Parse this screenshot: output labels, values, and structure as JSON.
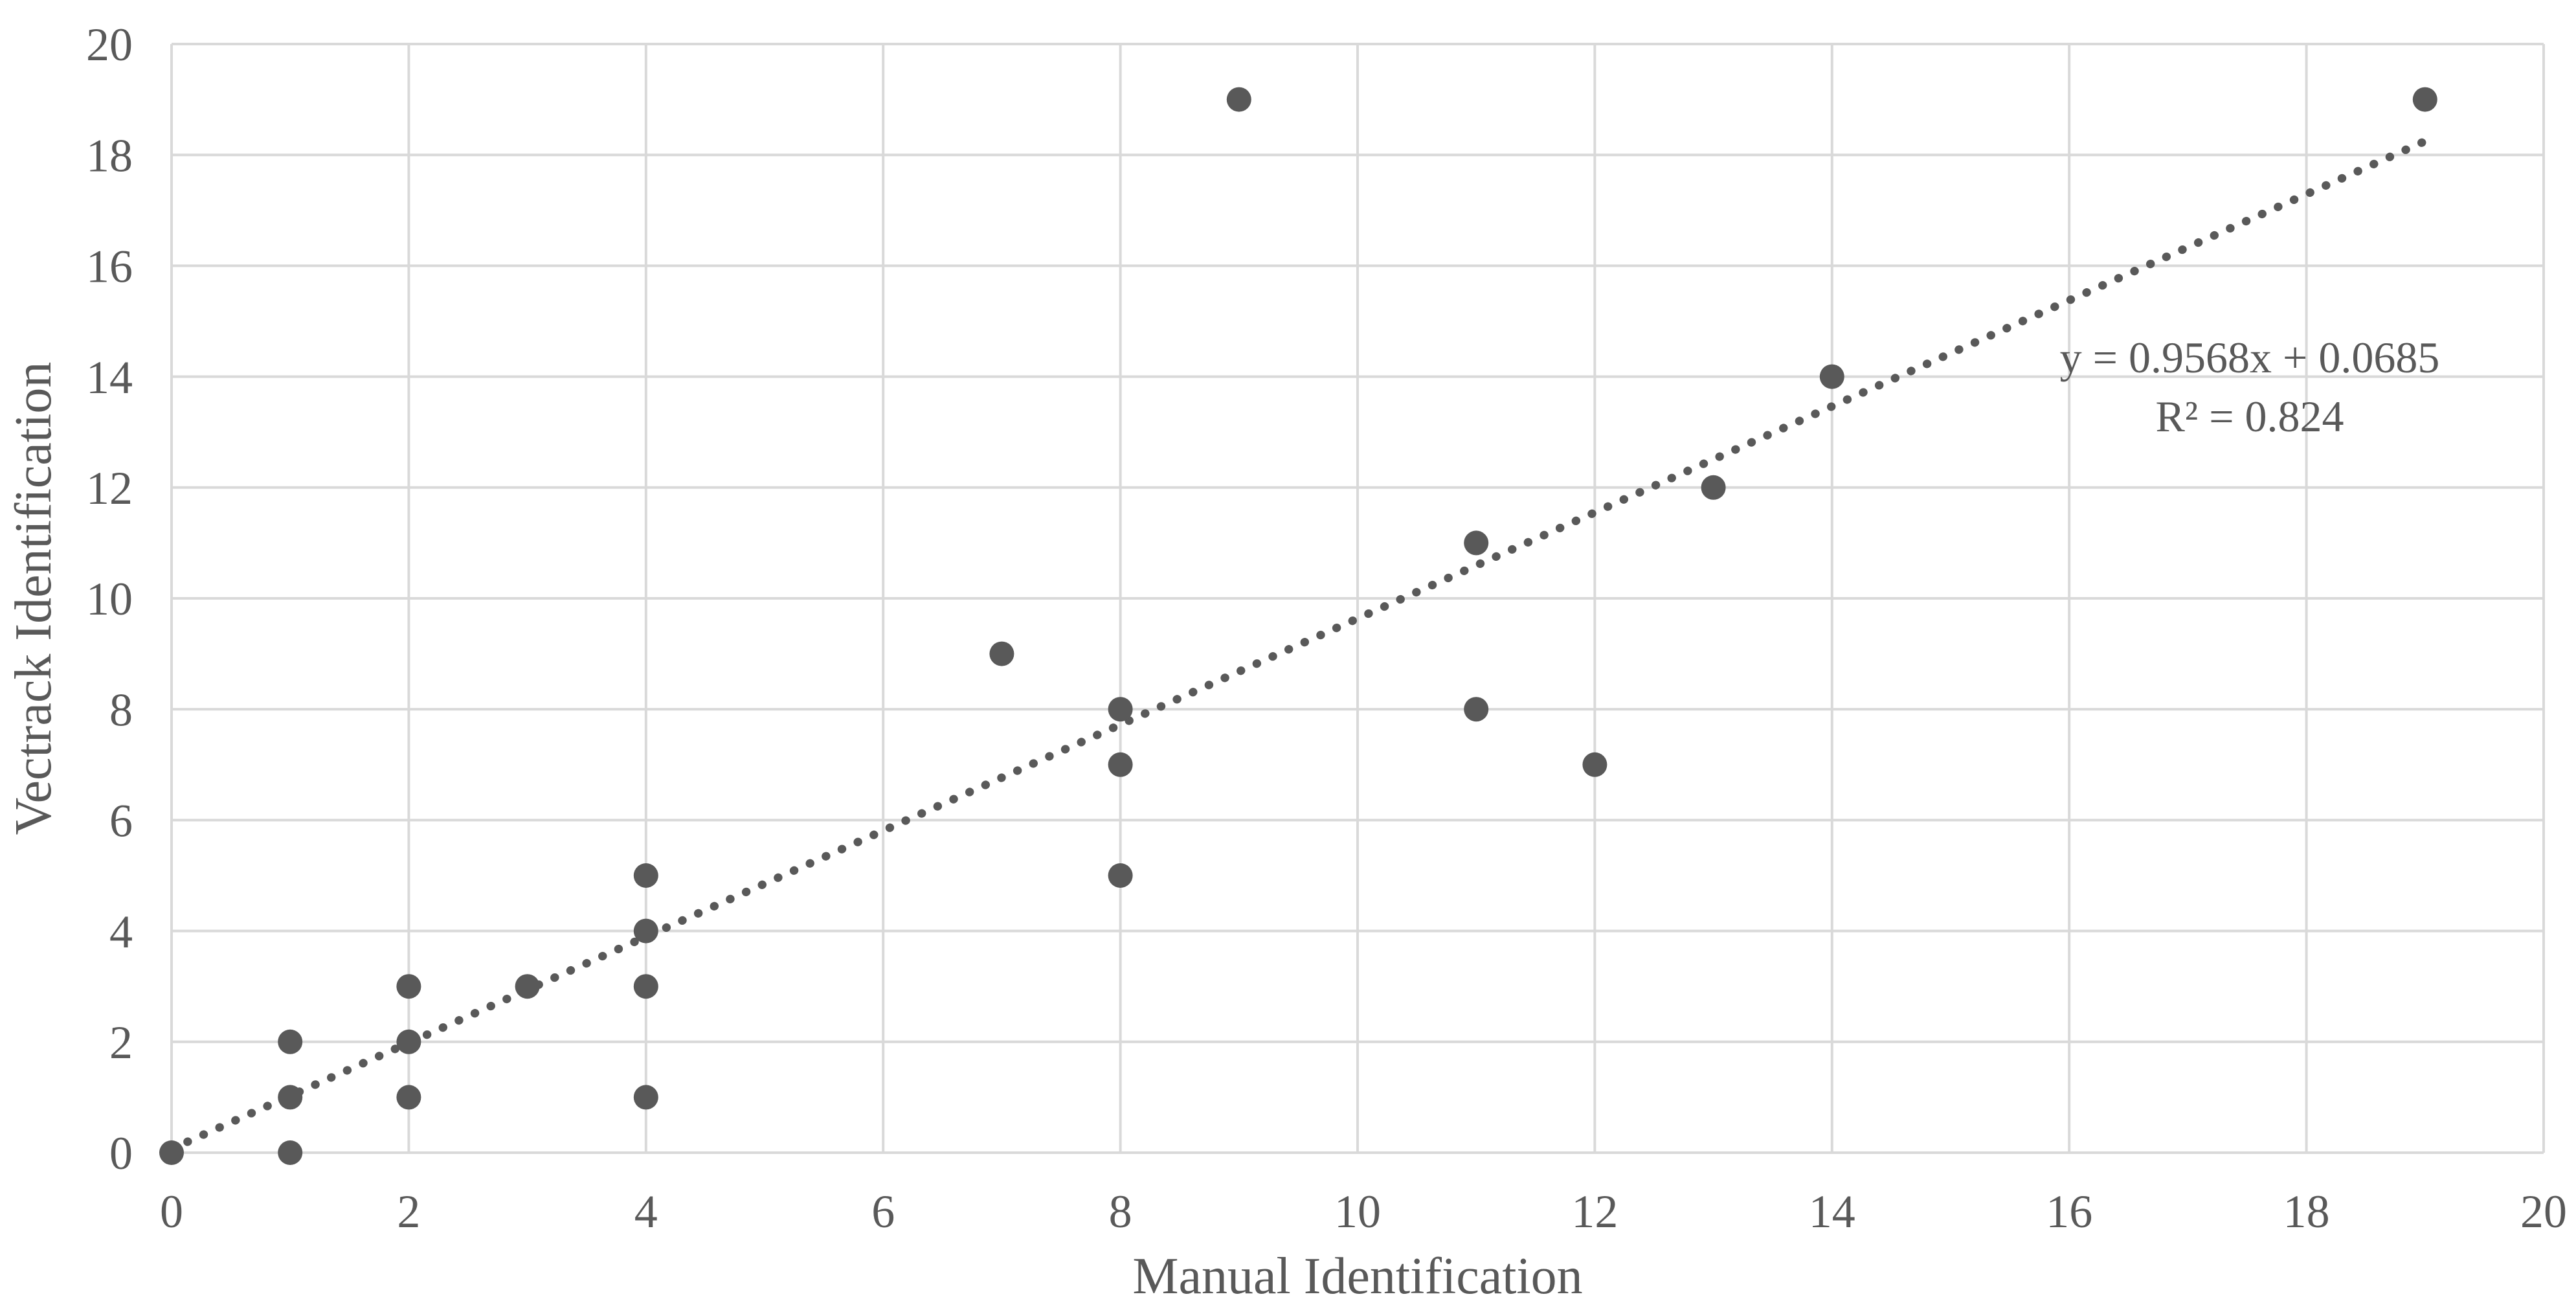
{
  "chart_data": {
    "type": "scatter",
    "title": "",
    "xlabel": "Manual Identification",
    "ylabel": "Vectrack Identification",
    "xlim": [
      0,
      20
    ],
    "ylim": [
      0,
      20
    ],
    "xticks": [
      0,
      2,
      4,
      6,
      8,
      10,
      12,
      14,
      16,
      18,
      20
    ],
    "yticks": [
      0,
      2,
      4,
      6,
      8,
      10,
      12,
      14,
      16,
      18,
      20
    ],
    "grid": true,
    "legend": "none",
    "points": [
      [
        0,
        0
      ],
      [
        1,
        0
      ],
      [
        1,
        1
      ],
      [
        1,
        2
      ],
      [
        2,
        1
      ],
      [
        2,
        2
      ],
      [
        2,
        3
      ],
      [
        3,
        3
      ],
      [
        4,
        1
      ],
      [
        4,
        3
      ],
      [
        4,
        4
      ],
      [
        4,
        5
      ],
      [
        7,
        9
      ],
      [
        8,
        5
      ],
      [
        8,
        7
      ],
      [
        8,
        8
      ],
      [
        9,
        19
      ],
      [
        11,
        8
      ],
      [
        11,
        11
      ],
      [
        12,
        7
      ],
      [
        13,
        12
      ],
      [
        14,
        14
      ],
      [
        19,
        19
      ]
    ],
    "trendline": {
      "style": "dotted",
      "slope": 0.9568,
      "intercept": 0.0685,
      "x_start": 0,
      "x_end": 19,
      "equation_label": "y = 0.9568x + 0.0685",
      "r_squared_label": "R² = 0.824"
    },
    "colors": {
      "marker": "#595959",
      "trendline": "#595959",
      "gridline": "#D9D9D9",
      "text": "#595959",
      "background": "#FFFFFF"
    }
  }
}
